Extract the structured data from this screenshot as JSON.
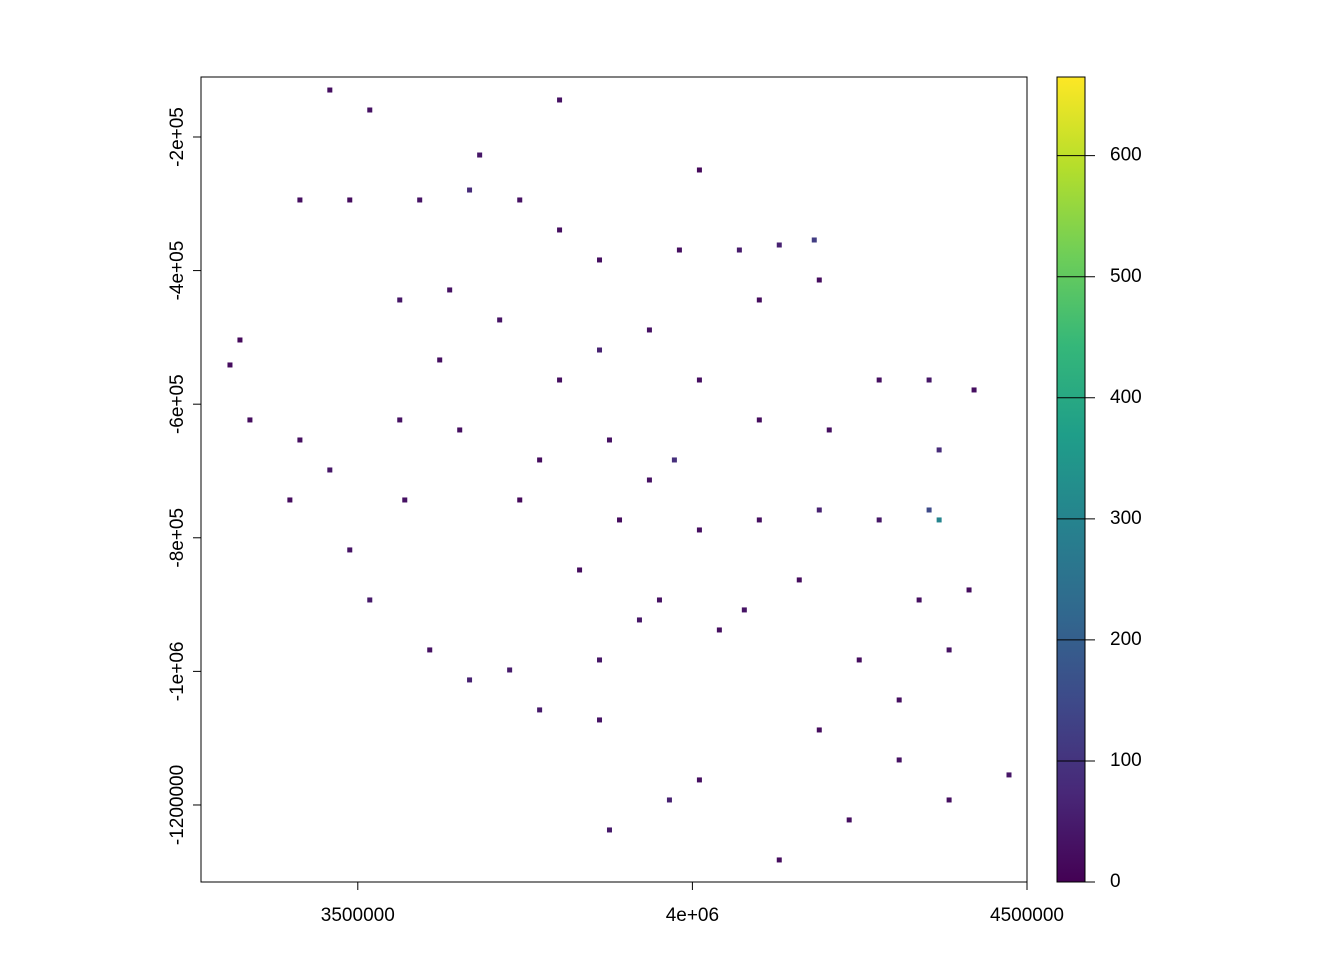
{
  "chart_data": {
    "type": "raster",
    "colormap": "viridis",
    "x": [
      3667000,
      3801500,
      3413500,
      3488000,
      3592500,
      3742000,
      3801500,
      3562700,
      3637300,
      3712000,
      3861200,
      3935800,
      3973100,
      4070200,
      4129800,
      4182100,
      4189600,
      3323900,
      3309000,
      3458200,
      3413500,
      3570200,
      3652300,
      3771700,
      3876100,
      4010500,
      4100000,
      4189600,
      4279100,
      4353700,
      4368700,
      4353700,
      4368700,
      4420900,
      3488000,
      3517900,
      3607500,
      3667000,
      3726900,
      3771700,
      3861200,
      3861200,
      3950800,
      4040300,
      4077600,
      3920900,
      3965700,
      3876100,
      4010500,
      4129800,
      4189600,
      4234300,
      4309000,
      4383600,
      4473100,
      4413400,
      4338800,
      4383600,
      3458200,
      3517900,
      3682100,
      4010500,
      3801500,
      3891100,
      3831400,
      4100000,
      4159700,
      4249300,
      4309000,
      3398500,
      3338800,
      3742000,
      3935800,
      4010500,
      4279100,
      4204500,
      3861200,
      3980600,
      4100000,
      3562700,
      3622400
    ],
    "y": [
      -279400,
      -144600,
      -294300,
      -294300,
      -294300,
      -294300,
      -339200,
      -444000,
      -429000,
      -473900,
      -518900,
      -488900,
      -683500,
      -369200,
      -361700,
      -354200,
      -414100,
      -503900,
      -541300,
      -698500,
      -653600,
      -743400,
      -638600,
      -683500,
      -653600,
      -563800,
      -623600,
      -758400,
      -563800,
      -563800,
      -668500,
      -758400,
      -773300,
      -578700,
      -818200,
      -893100,
      -967900,
      -1012800,
      -997900,
      -1057700,
      -982900,
      -1072700,
      -893100,
      -938000,
      -908000,
      -923000,
      -1192500,
      -1237400,
      -1162500,
      -1282300,
      -1087700,
      -1222400,
      -1132600,
      -1192500,
      -1155000,
      -878100,
      -893100,
      -967900,
      -129700,
      -159600,
      -227000,
      -249400,
      -563800,
      -773300,
      -848200,
      -773300,
      -863100,
      -982900,
      -1042800,
      -743400,
      -623600,
      -743400,
      -713500,
      -788300,
      -773300,
      -638600,
      -384100,
      -369200,
      -444000,
      -623600,
      -533800
    ],
    "values": [
      80,
      30,
      25,
      20,
      35,
      30,
      25,
      40,
      30,
      35,
      60,
      30,
      90,
      50,
      60,
      120,
      20,
      15,
      20,
      40,
      25,
      30,
      25,
      20,
      30,
      25,
      20,
      60,
      25,
      40,
      80,
      150,
      300,
      25,
      35,
      45,
      30,
      60,
      50,
      45,
      40,
      35,
      30,
      25,
      35,
      40,
      60,
      45,
      25,
      20,
      20,
      25,
      30,
      25,
      40,
      20,
      25,
      30,
      25,
      30,
      40,
      15,
      25,
      20,
      20,
      25,
      20,
      20,
      25,
      20,
      20,
      15,
      30,
      25,
      40,
      25,
      25,
      25,
      20,
      30,
      25
    ],
    "xlim": [
      3265700,
      4500000
    ],
    "ylim": [
      -1315300,
      -110200
    ],
    "xticks": [
      3500000,
      {
        "value": 4000000,
        "label": "4e+06"
      },
      4500000
    ],
    "yticks": [
      {
        "value": -200000,
        "label": "-2e+05"
      },
      {
        "value": -400000,
        "label": "-4e+05"
      },
      {
        "value": -600000,
        "label": "-6e+05"
      },
      {
        "value": -800000,
        "label": "-8e+05"
      },
      {
        "value": -1000000,
        "label": "-1e+06"
      },
      -1200000
    ],
    "zlim": [
      0,
      665
    ],
    "zticks": [
      0,
      100,
      200,
      300,
      400,
      500,
      600
    ]
  }
}
